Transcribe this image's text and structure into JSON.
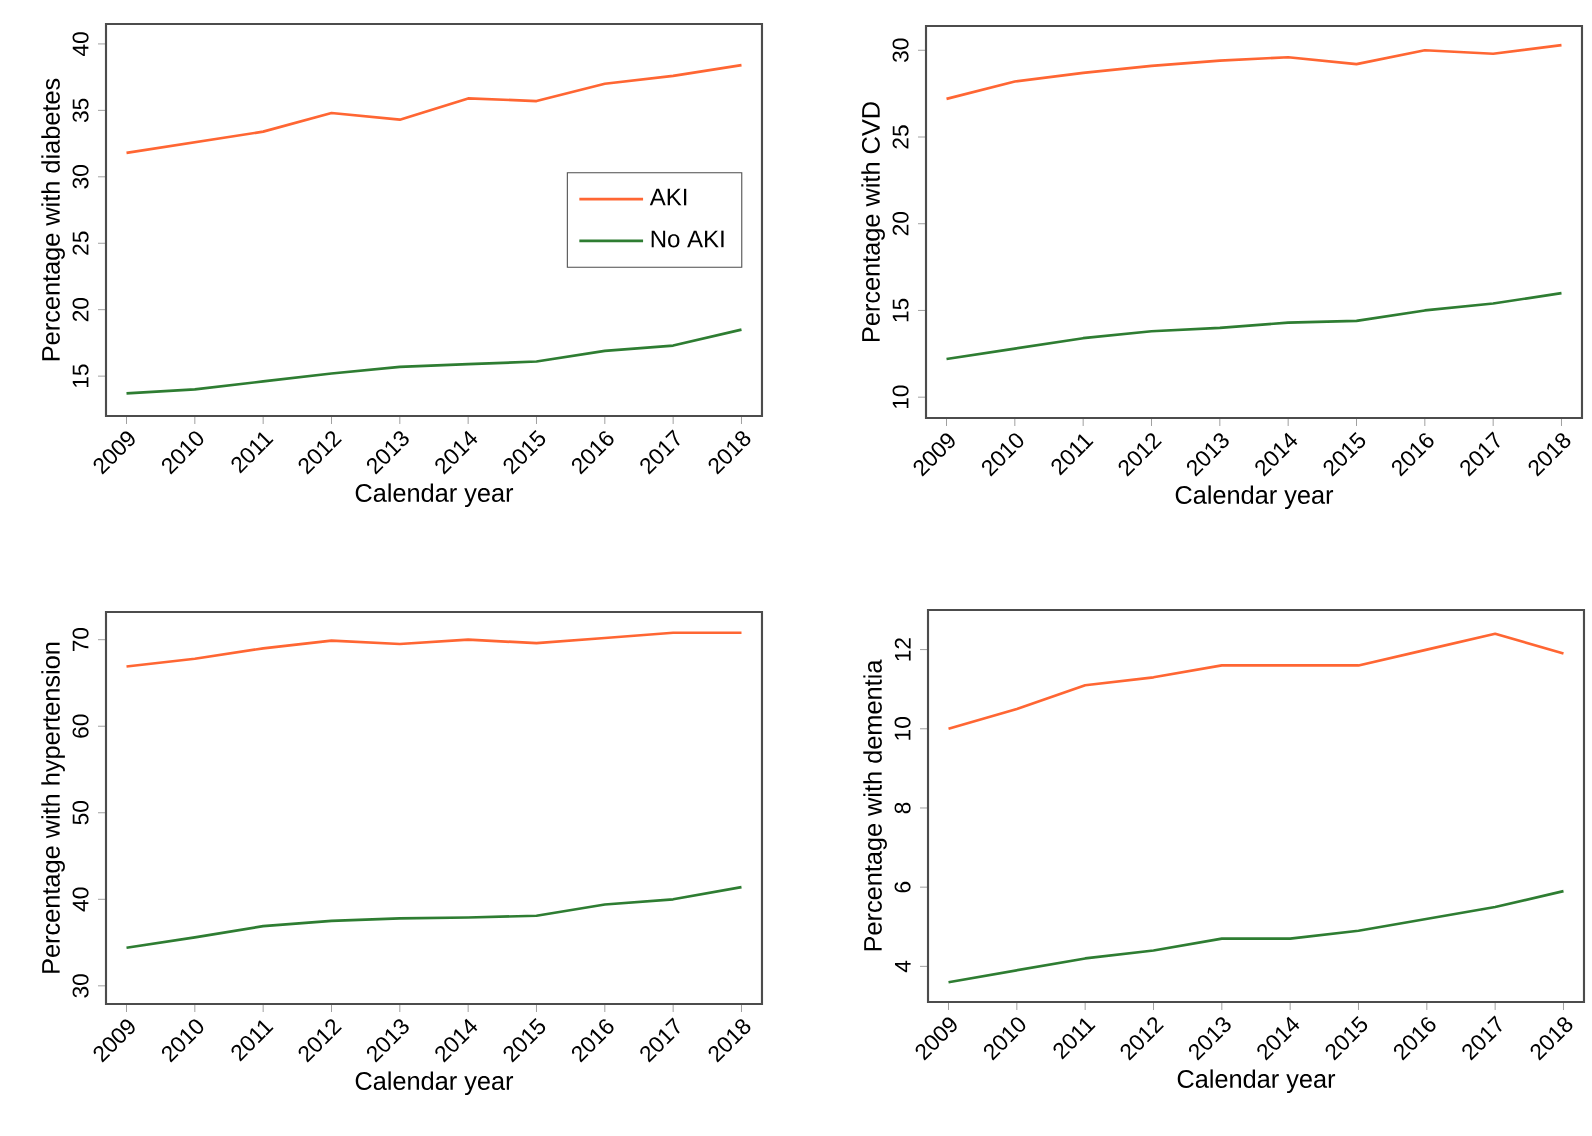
{
  "chart_data": [
    {
      "type": "line",
      "xlabel": "Calendar year",
      "ylabel": "Percentage with diabetes",
      "x": [
        2009,
        2010,
        2011,
        2012,
        2013,
        2014,
        2015,
        2016,
        2017,
        2018
      ],
      "xlim": [
        2008.7,
        2018.3
      ],
      "ylim": [
        12,
        41.5
      ],
      "xticks": [
        2009,
        2010,
        2011,
        2012,
        2013,
        2014,
        2015,
        2016,
        2017,
        2018
      ],
      "yticks": [
        15,
        20,
        25,
        30,
        35,
        40
      ],
      "legend": "right",
      "series": [
        {
          "name": "AKI",
          "color": "#ff6633",
          "values": [
            31.8,
            32.6,
            33.4,
            34.8,
            34.3,
            35.9,
            35.7,
            37.0,
            37.6,
            38.4
          ]
        },
        {
          "name": "No AKI",
          "color": "#2e7d32",
          "values": [
            13.7,
            14.0,
            14.6,
            15.2,
            15.7,
            15.9,
            16.1,
            16.9,
            17.3,
            18.5
          ]
        }
      ]
    },
    {
      "type": "line",
      "xlabel": "Calendar year",
      "ylabel": "Percentage with CVD",
      "x": [
        2009,
        2010,
        2011,
        2012,
        2013,
        2014,
        2015,
        2016,
        2017,
        2018
      ],
      "xlim": [
        2008.7,
        2018.3
      ],
      "ylim": [
        8.8,
        31.4
      ],
      "xticks": [
        2009,
        2010,
        2011,
        2012,
        2013,
        2014,
        2015,
        2016,
        2017,
        2018
      ],
      "yticks": [
        10,
        15,
        20,
        25,
        30
      ],
      "series": [
        {
          "color": "#ff6633",
          "values": [
            27.2,
            28.2,
            28.7,
            29.1,
            29.4,
            29.6,
            29.2,
            30.0,
            29.8,
            30.3
          ]
        },
        {
          "color": "#2e7d32",
          "values": [
            12.2,
            12.8,
            13.4,
            13.8,
            14.0,
            14.3,
            14.4,
            15.0,
            15.4,
            16.0
          ]
        }
      ]
    },
    {
      "type": "line",
      "xlabel": "Calendar year",
      "ylabel": "Percentage with hypertension",
      "x": [
        2009,
        2010,
        2011,
        2012,
        2013,
        2014,
        2015,
        2016,
        2017,
        2018
      ],
      "xlim": [
        2008.7,
        2018.3
      ],
      "ylim": [
        27.9,
        73.2
      ],
      "xticks": [
        2009,
        2010,
        2011,
        2012,
        2013,
        2014,
        2015,
        2016,
        2017,
        2018
      ],
      "yticks": [
        30,
        40,
        50,
        60,
        70
      ],
      "series": [
        {
          "color": "#ff6633",
          "values": [
            66.9,
            67.8,
            69.0,
            69.9,
            69.5,
            70.0,
            69.6,
            70.2,
            70.8,
            70.8
          ]
        },
        {
          "color": "#2e7d32",
          "values": [
            34.4,
            35.6,
            36.9,
            37.5,
            37.8,
            37.9,
            38.1,
            39.4,
            40.0,
            41.4
          ]
        }
      ]
    },
    {
      "type": "line",
      "xlabel": "Calendar year",
      "ylabel": "Percentage with dementia",
      "x": [
        2009,
        2010,
        2011,
        2012,
        2013,
        2014,
        2015,
        2016,
        2017,
        2018
      ],
      "xlim": [
        2008.7,
        2018.3
      ],
      "ylim": [
        3.1,
        13.0
      ],
      "xticks": [
        2009,
        2010,
        2011,
        2012,
        2013,
        2014,
        2015,
        2016,
        2017,
        2018
      ],
      "yticks": [
        4,
        6,
        8,
        10,
        12
      ],
      "series": [
        {
          "color": "#ff6633",
          "values": [
            10.0,
            10.5,
            11.1,
            11.3,
            11.6,
            11.6,
            11.6,
            12.0,
            12.4,
            11.9
          ]
        },
        {
          "color": "#2e7d32",
          "values": [
            3.6,
            3.9,
            4.2,
            4.4,
            4.7,
            4.7,
            4.9,
            5.2,
            5.5,
            5.9
          ]
        }
      ]
    }
  ]
}
